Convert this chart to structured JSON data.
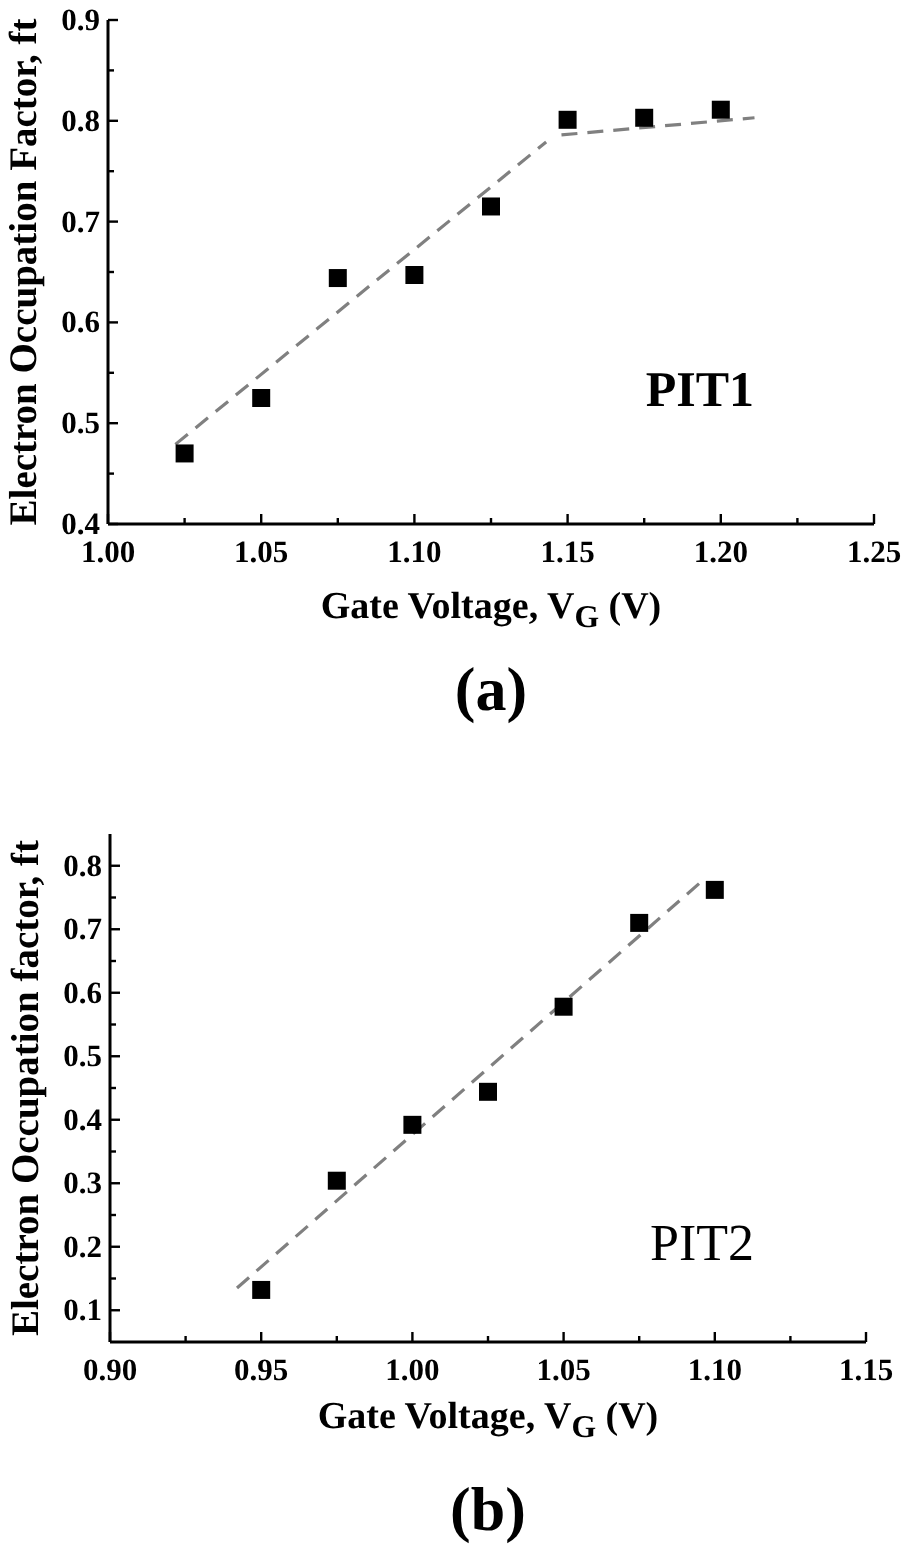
{
  "chart_data": [
    {
      "type": "scatter",
      "title": "(a)",
      "xlabel": "Gate Voltage, V$_{G}$ (V)",
      "ylabel": "Electron Occupation Factor, ft",
      "annotations": [
        "PIT1"
      ],
      "xlim": [
        1.0,
        1.25
      ],
      "xticks": [
        {
          "value": 1.0,
          "label": "1.00"
        },
        {
          "value": 1.025,
          "label": null
        },
        1.05,
        {
          "value": 1.075,
          "label": null
        },
        {
          "value": 1.1,
          "label": "1.10"
        },
        {
          "value": 1.125,
          "label": null
        },
        1.15,
        {
          "value": 1.175,
          "label": null
        },
        {
          "value": 1.2,
          "label": "1.20"
        },
        {
          "value": 1.225,
          "label": null
        },
        1.25
      ],
      "ylim": [
        0.4,
        0.9
      ],
      "yticks": [
        0.4,
        {
          "value": 0.45,
          "label": null
        },
        0.5,
        {
          "value": 0.55,
          "label": null
        },
        0.6,
        {
          "value": 0.65,
          "label": null
        },
        0.7,
        {
          "value": 0.75,
          "label": null
        },
        0.8,
        {
          "value": 0.85,
          "label": null
        },
        0.9
      ],
      "marker": "square",
      "line_style": "dashed",
      "series": [
        {
          "color": "#000000",
          "x": [
            1.025,
            1.05,
            1.075,
            1.1,
            1.125,
            1.15,
            1.175,
            1.2
          ],
          "values": [
            0.47,
            0.525,
            0.644,
            0.647,
            0.715,
            0.801,
            0.803,
            0.811
          ]
        },
        {
          "type": "line",
          "marker": "none",
          "color": "#808080",
          "x": [
            1.022,
            1.143
          ],
          "values": [
            0.479,
            0.779
          ]
        },
        {
          "type": "line",
          "marker": "none",
          "color": "#808080",
          "x": [
            1.148,
            1.211
          ],
          "values": [
            0.786,
            0.803
          ]
        }
      ]
    },
    {
      "type": "scatter",
      "title": "(b)",
      "xlabel": "Gate Voltage, V$_{G}$ (V)",
      "ylabel": "Electron Occupation factor, ft",
      "annotations": [
        "PIT2"
      ],
      "xlim": [
        0.9,
        1.15
      ],
      "xticks": [
        {
          "value": 0.9,
          "label": "0.90"
        },
        {
          "value": 0.925,
          "label": null
        },
        0.95,
        {
          "value": 0.975,
          "label": null
        },
        {
          "value": 1.0,
          "label": "1.00"
        },
        {
          "value": 1.025,
          "label": null
        },
        1.05,
        {
          "value": 1.075,
          "label": null
        },
        {
          "value": 1.1,
          "label": "1.10"
        },
        {
          "value": 1.125,
          "label": null
        },
        1.15
      ],
      "ylim": [
        0.05,
        0.85
      ],
      "yticks": [
        0.1,
        {
          "value": 0.15,
          "label": null
        },
        0.2,
        {
          "value": 0.25,
          "label": null
        },
        0.3,
        {
          "value": 0.35,
          "label": null
        },
        0.4,
        {
          "value": 0.45,
          "label": null
        },
        0.5,
        {
          "value": 0.55,
          "label": null
        },
        0.6,
        {
          "value": 0.65,
          "label": null
        },
        0.7,
        {
          "value": 0.75,
          "label": null
        },
        0.8
      ],
      "marker": "square",
      "line_style": "dashed",
      "series": [
        {
          "color": "#000000",
          "x": [
            0.95,
            0.975,
            1.0,
            1.025,
            1.05,
            1.075,
            1.1
          ],
          "values": [
            0.132,
            0.304,
            0.392,
            0.444,
            0.578,
            0.71,
            0.762
          ]
        },
        {
          "type": "line",
          "marker": "none",
          "color": "#808080",
          "x": [
            0.942,
            1.097
          ],
          "values": [
            0.135,
            0.781
          ]
        }
      ]
    }
  ]
}
